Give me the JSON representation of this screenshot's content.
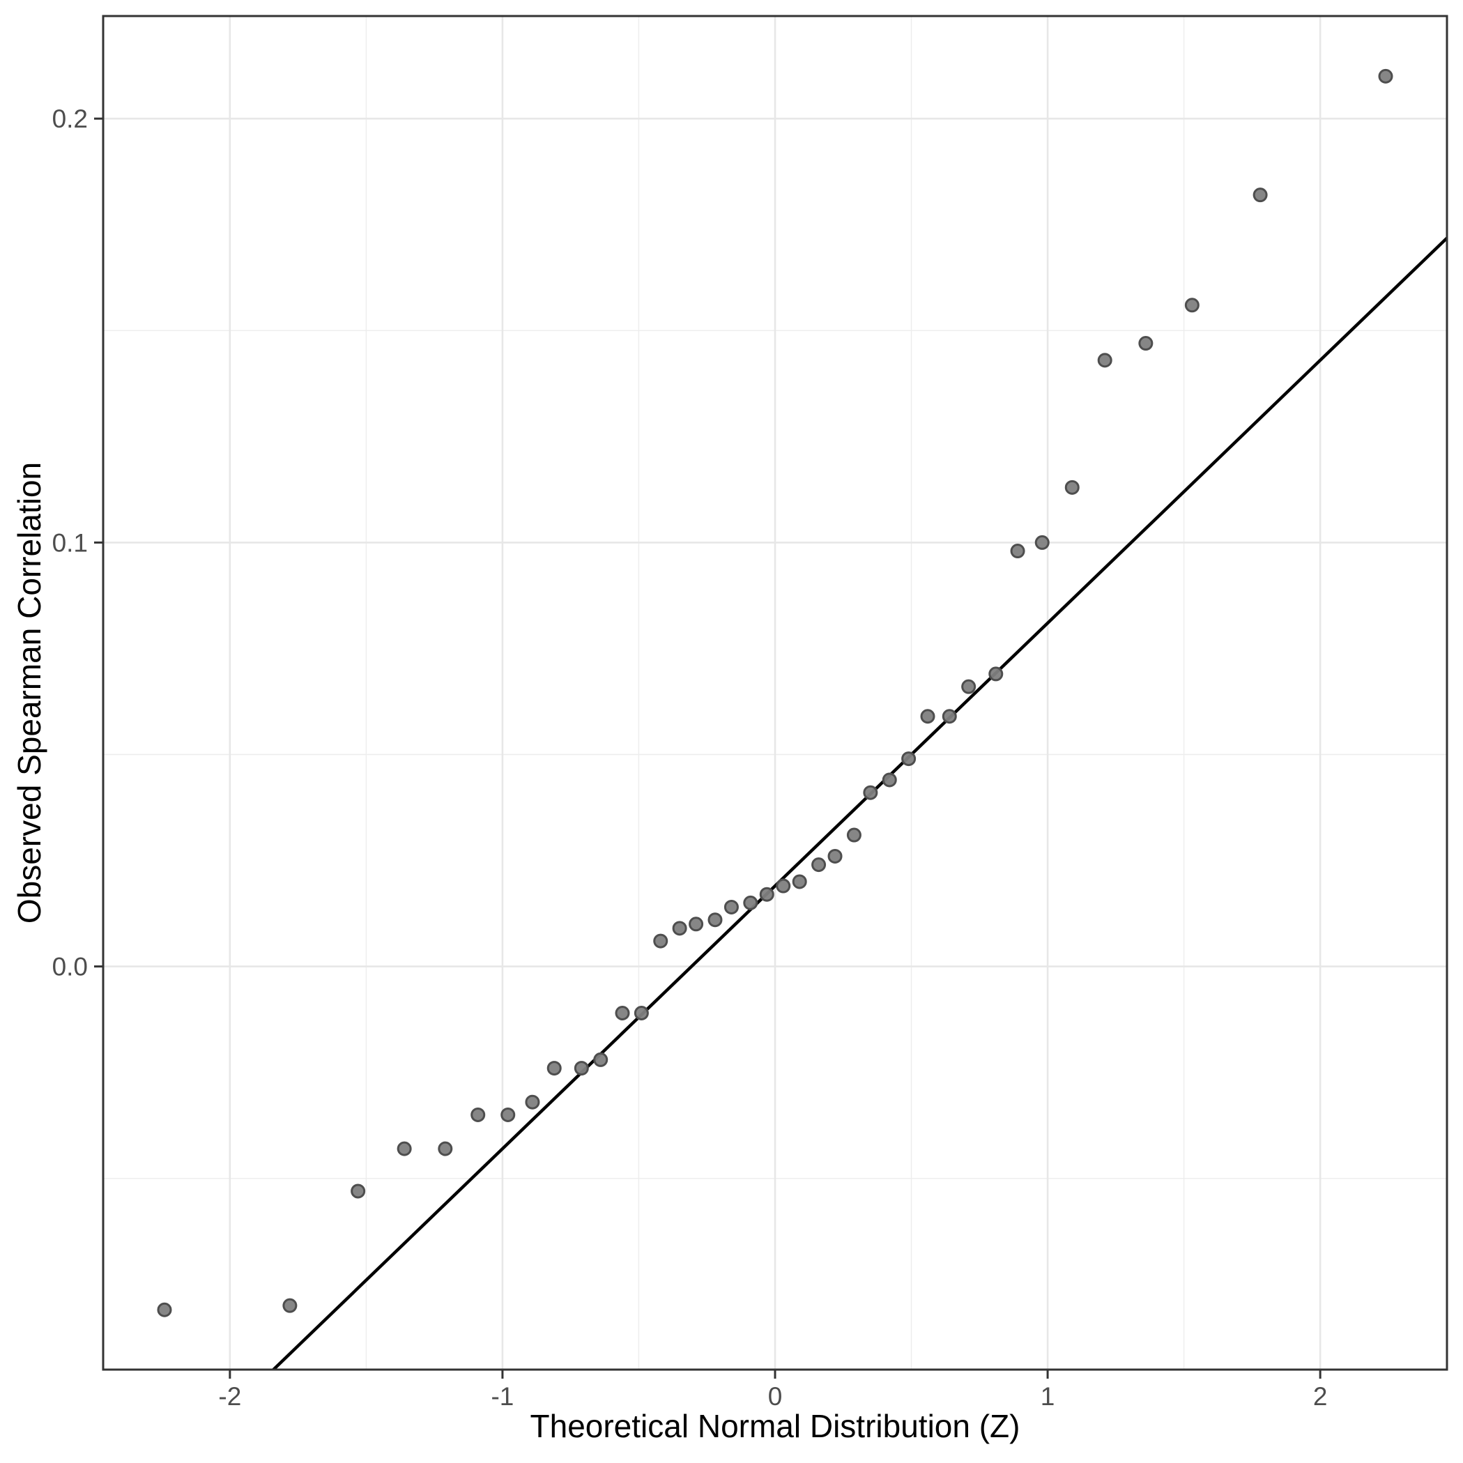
{
  "chart_data": {
    "type": "scatter",
    "title": "",
    "xlabel": "Theoretical Normal Distribution (Z)",
    "ylabel": "Observed Spearman Correlation",
    "xlim": [
      -2.465,
      2.465
    ],
    "ylim": [
      -0.0951,
      0.2242
    ],
    "grid": "major and minor, light gray on white panel",
    "legend_position": "none",
    "x_ticks": [
      {
        "label": "-2",
        "value": -2
      },
      {
        "label": "-1",
        "value": -1
      },
      {
        "label": "0",
        "value": 0
      },
      {
        "label": "1",
        "value": 1
      },
      {
        "label": "2",
        "value": 2
      }
    ],
    "y_ticks": [
      {
        "label": "0.0",
        "value": 0.0
      },
      {
        "label": "0.1",
        "value": 0.1
      },
      {
        "label": "0.2",
        "value": 0.2
      }
    ],
    "x_minor_ticks": [
      -1.5,
      -0.5,
      0.5,
      1.5
    ],
    "y_minor_ticks": [
      -0.05,
      0.05,
      0.15
    ],
    "series": [
      {
        "name": "qq-points",
        "marker": "circle",
        "points": [
          {
            "x": -2.24,
            "y": -0.081
          },
          {
            "x": -1.78,
            "y": -0.08
          },
          {
            "x": -1.53,
            "y": -0.053
          },
          {
            "x": -1.36,
            "y": -0.043
          },
          {
            "x": -1.21,
            "y": -0.043
          },
          {
            "x": -1.09,
            "y": -0.035
          },
          {
            "x": -0.98,
            "y": -0.035
          },
          {
            "x": -0.89,
            "y": -0.032
          },
          {
            "x": -0.81,
            "y": -0.024
          },
          {
            "x": -0.71,
            "y": -0.024
          },
          {
            "x": -0.64,
            "y": -0.022
          },
          {
            "x": -0.56,
            "y": -0.011
          },
          {
            "x": -0.49,
            "y": -0.011
          },
          {
            "x": -0.42,
            "y": 0.006
          },
          {
            "x": -0.35,
            "y": 0.009
          },
          {
            "x": -0.29,
            "y": 0.01
          },
          {
            "x": -0.22,
            "y": 0.011
          },
          {
            "x": -0.16,
            "y": 0.014
          },
          {
            "x": -0.09,
            "y": 0.015
          },
          {
            "x": -0.03,
            "y": 0.017
          },
          {
            "x": 0.03,
            "y": 0.019
          },
          {
            "x": 0.09,
            "y": 0.02
          },
          {
            "x": 0.16,
            "y": 0.024
          },
          {
            "x": 0.22,
            "y": 0.026
          },
          {
            "x": 0.29,
            "y": 0.031
          },
          {
            "x": 0.35,
            "y": 0.041
          },
          {
            "x": 0.42,
            "y": 0.044
          },
          {
            "x": 0.49,
            "y": 0.049
          },
          {
            "x": 0.56,
            "y": 0.059
          },
          {
            "x": 0.64,
            "y": 0.059
          },
          {
            "x": 0.71,
            "y": 0.066
          },
          {
            "x": 0.81,
            "y": 0.069
          },
          {
            "x": 0.89,
            "y": 0.098
          },
          {
            "x": 0.98,
            "y": 0.1
          },
          {
            "x": 1.09,
            "y": 0.113
          },
          {
            "x": 1.21,
            "y": 0.143
          },
          {
            "x": 1.36,
            "y": 0.147
          },
          {
            "x": 1.53,
            "y": 0.156
          },
          {
            "x": 1.78,
            "y": 0.182
          },
          {
            "x": 2.24,
            "y": 0.21
          }
        ]
      }
    ],
    "ref_line": {
      "intercept": 0.019,
      "slope": 0.062
    },
    "colors": {
      "point_fill": "#7f7f7f",
      "point_stroke": "#4e4e4e",
      "ref_line": "#000000",
      "grid_major": "#e7e7e7",
      "grid_minor": "#ededed",
      "panel_border": "#333333",
      "tick_mark": "#333333",
      "tick_label": "#4d4d4d",
      "axis_title": "#000000",
      "panel_bg": "#ffffff"
    }
  }
}
